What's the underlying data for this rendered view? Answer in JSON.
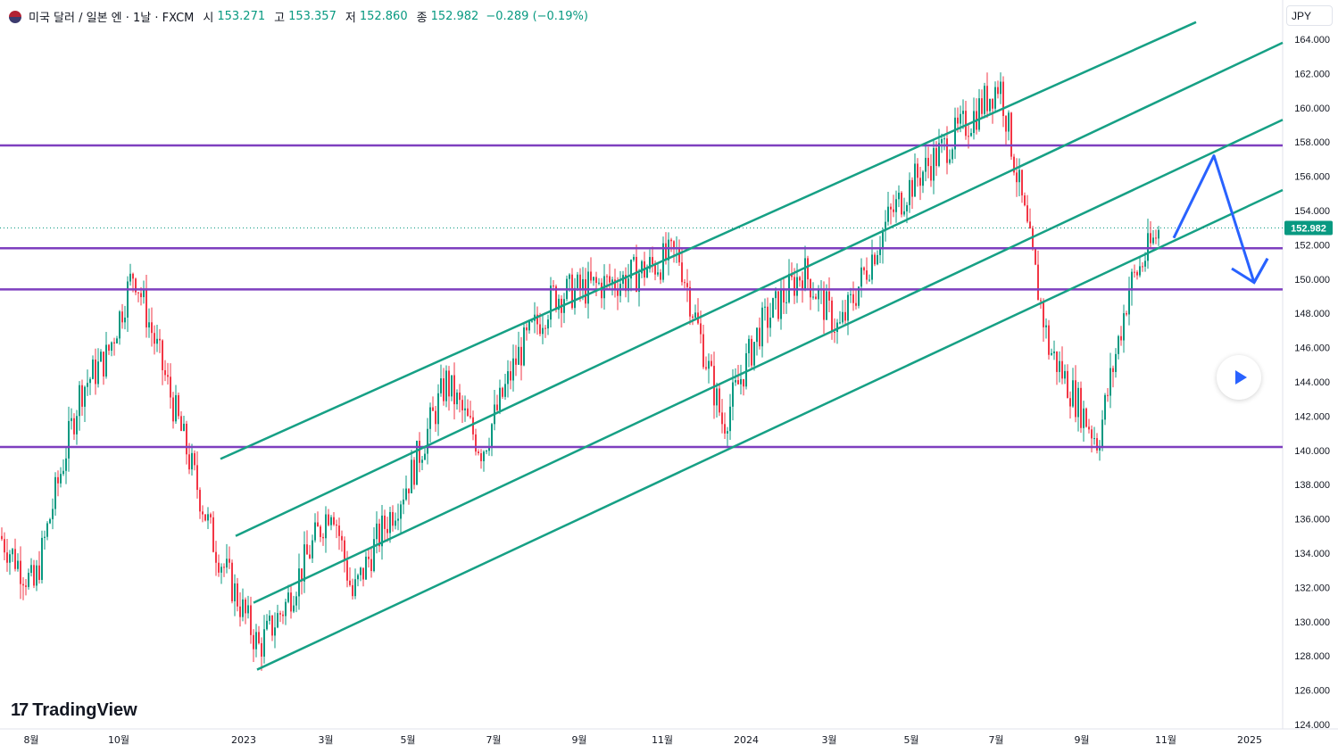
{
  "header": {
    "symbol": "미국 달러 / 일본 엔 · 1날 · FXCM",
    "open_label": "시",
    "open": "153.271",
    "high_label": "고",
    "high": "153.357",
    "low_label": "저",
    "low": "152.860",
    "close_label": "종",
    "close": "152.982",
    "change": "−0.289 (−0.19%)"
  },
  "currency": "JPY",
  "brand": {
    "logo": "17",
    "name": "TradingView"
  },
  "icons": {
    "play": "play-icon",
    "flag": "us-jp-flag-icon"
  },
  "colors": {
    "up": "#089981",
    "down": "#f23645",
    "channel": "#16a085",
    "level": "#7e3fbf",
    "arrow": "#2962ff",
    "price_tag": "#089981"
  },
  "chart_data": {
    "type": "candlestick",
    "title": "미국 달러 / 일본 엔 · 1날 · FXCM",
    "y_axis": {
      "min": 124,
      "max": 165,
      "ticks": [
        "164.000",
        "162.000",
        "160.000",
        "158.000",
        "156.000",
        "154.000",
        "152.000",
        "150.000",
        "148.000",
        "146.000",
        "144.000",
        "142.000",
        "140.000",
        "138.000",
        "136.000",
        "134.000",
        "132.000",
        "130.000",
        "128.000",
        "126.000",
        "124.000"
      ],
      "side": "right"
    },
    "x_axis": {
      "ticks": [
        "8월",
        "10월",
        "2023",
        "3월",
        "5월",
        "7월",
        "9월",
        "11월",
        "2024",
        "3월",
        "5월",
        "7월",
        "9월",
        "11월",
        "2025"
      ]
    },
    "last_price": "152.982",
    "horizontal_levels": [
      157.8,
      151.8,
      149.4,
      140.2
    ],
    "channel_lines": [
      {
        "start": [
          "2022-12",
          139.5
        ],
        "end": [
          "2024-11",
          165.0
        ]
      },
      {
        "start": [
          "2023-01",
          135.0
        ],
        "end": [
          "2025-01",
          163.8
        ]
      },
      {
        "start": [
          "2023-01",
          131.1
        ],
        "end": [
          "2025-01",
          159.3
        ]
      },
      {
        "start": [
          "2023-01",
          127.2
        ],
        "end": [
          "2025-01",
          155.2
        ]
      }
    ],
    "projection_path": [
      [
        "2024-11",
        152.4
      ],
      [
        "2024-12",
        157.2
      ],
      [
        "2025-01",
        149.8
      ],
      [
        "2025-01",
        151.2
      ]
    ],
    "price_path": [
      [
        "2022-07",
        135.0
      ],
      [
        "2022-08",
        132.0
      ],
      [
        "2022-08",
        137.0
      ],
      [
        "2022-09",
        143.5
      ],
      [
        "2022-10",
        145.5
      ],
      [
        "2022-10",
        150.5
      ],
      [
        "2022-11",
        142.5
      ],
      [
        "2022-12",
        134.5
      ],
      [
        "2023-01",
        128.5
      ],
      [
        "2023-01",
        131.0
      ],
      [
        "2023-03",
        137.0
      ],
      [
        "2023-03",
        131.5
      ],
      [
        "2023-04",
        134.5
      ],
      [
        "2023-05",
        138.5
      ],
      [
        "2023-06",
        144.0
      ],
      [
        "2023-07",
        140.0
      ],
      [
        "2023-08",
        145.5
      ],
      [
        "2023-09",
        149.0
      ],
      [
        "2023-10",
        150.0
      ],
      [
        "2023-11",
        151.5
      ],
      [
        "2023-12",
        141.5
      ],
      [
        "2024-01",
        147.0
      ],
      [
        "2024-02",
        150.5
      ],
      [
        "2024-03",
        147.0
      ],
      [
        "2024-04",
        153.5
      ],
      [
        "2024-05",
        155.5
      ],
      [
        "2024-06",
        159.5
      ],
      [
        "2024-07",
        161.5
      ],
      [
        "2024-08",
        146.0
      ],
      [
        "2024-09",
        140.5
      ],
      [
        "2024-10",
        149.5
      ],
      [
        "2024-11",
        153.0
      ]
    ]
  }
}
